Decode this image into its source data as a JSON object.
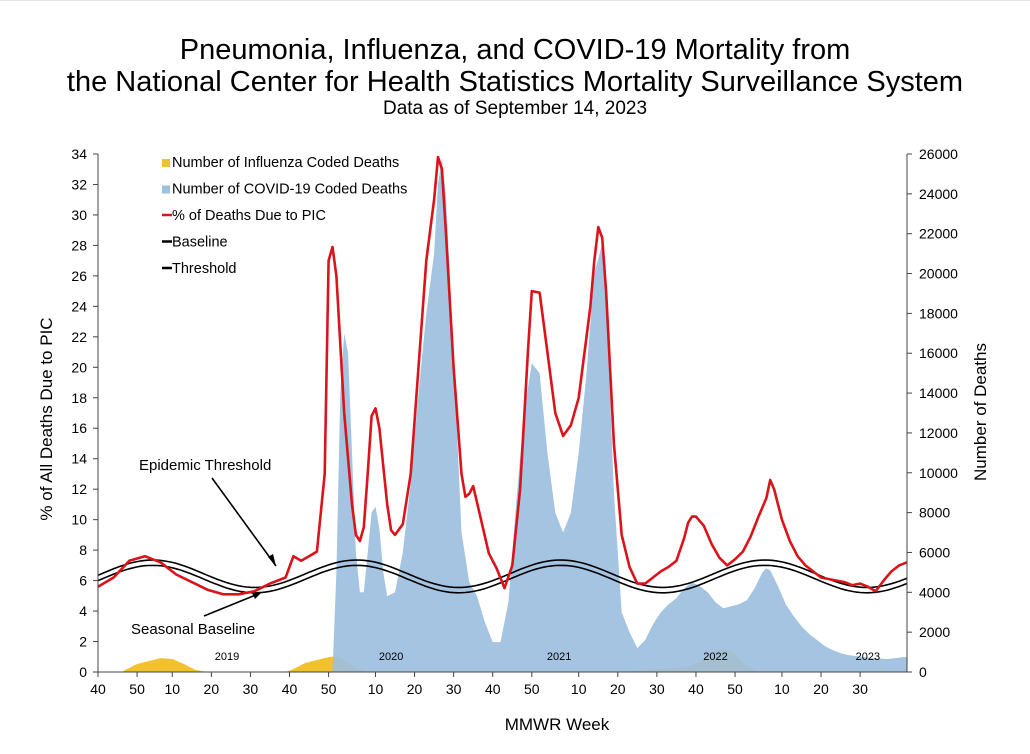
{
  "chart_data": {
    "type": "line",
    "title": "Pneumonia, Influenza, and COVID-19 Mortality from",
    "title_line2": "the National Center for Health Statistics Mortality Surveillance System",
    "subtitle": "Data as of September 14, 2023",
    "xlabel": "MMWR Week",
    "ylabel_left": "% of All Deaths Due to PIC",
    "ylabel_right": "Number of Deaths",
    "ylim_left": [
      0,
      34
    ],
    "ylim_right": [
      0,
      26000
    ],
    "yticks_left": [
      0,
      2,
      4,
      6,
      8,
      10,
      12,
      14,
      16,
      18,
      20,
      22,
      24,
      26,
      28,
      30,
      32,
      34
    ],
    "yticks_right": [
      0,
      2000,
      4000,
      6000,
      8000,
      10000,
      12000,
      14000,
      16000,
      18000,
      20000,
      22000,
      24000,
      26000
    ],
    "x_range_weeks": [
      0,
      207
    ],
    "xticks": [
      {
        "w": 0,
        "label": "40"
      },
      {
        "w": 10,
        "label": "50"
      },
      {
        "w": 19,
        "label": "10"
      },
      {
        "w": 29,
        "label": "20"
      },
      {
        "w": 39,
        "label": "30"
      },
      {
        "w": 49,
        "label": "40"
      },
      {
        "w": 59,
        "label": "50"
      },
      {
        "w": 71,
        "label": "10"
      },
      {
        "w": 81,
        "label": "20"
      },
      {
        "w": 91,
        "label": "30"
      },
      {
        "w": 101,
        "label": "40"
      },
      {
        "w": 111,
        "label": "50"
      },
      {
        "w": 123,
        "label": "10"
      },
      {
        "w": 133,
        "label": "20"
      },
      {
        "w": 143,
        "label": "30"
      },
      {
        "w": 153,
        "label": "40"
      },
      {
        "w": 163,
        "label": "50"
      },
      {
        "w": 175,
        "label": "10"
      },
      {
        "w": 185,
        "label": "20"
      },
      {
        "w": 195,
        "label": "30"
      }
    ],
    "year_labels": [
      {
        "w": 33,
        "label": "2019"
      },
      {
        "w": 75,
        "label": "2020"
      },
      {
        "w": 118,
        "label": "2021"
      },
      {
        "w": 158,
        "label": "2022"
      },
      {
        "w": 197,
        "label": "2023"
      }
    ],
    "legend": [
      {
        "label": "Number of Influenza Coded Deaths",
        "color": "#f2c12e",
        "kind": "square"
      },
      {
        "label": "Number of COVID-19 Coded Deaths",
        "color": "#9dbfe0",
        "kind": "square"
      },
      {
        "label": "% of Deaths Due to PIC",
        "color": "#d9141b",
        "kind": "line"
      },
      {
        "label": "Baseline",
        "color": "#000000",
        "kind": "line"
      },
      {
        "label": "Threshold",
        "color": "#000000",
        "kind": "line"
      }
    ],
    "annotations": [
      {
        "text": "Epidemic Threshold"
      },
      {
        "text": "Seasonal Baseline"
      }
    ],
    "baseline_model": {
      "mean_pct": 6.1,
      "amplitude_pct": 0.9,
      "peak_week": 14,
      "period_weeks": 52.2
    },
    "threshold_offset_pct": 0.35,
    "series": [
      {
        "name": "% of Deaths Due to PIC",
        "axis": "left",
        "color": "#d9141b",
        "points": [
          [
            0,
            5.6
          ],
          [
            4,
            6.2
          ],
          [
            8,
            7.3
          ],
          [
            12,
            7.6
          ],
          [
            16,
            7.2
          ],
          [
            20,
            6.4
          ],
          [
            24,
            5.9
          ],
          [
            28,
            5.4
          ],
          [
            32,
            5.1
          ],
          [
            36,
            5.1
          ],
          [
            40,
            5.3
          ],
          [
            44,
            5.8
          ],
          [
            48,
            6.2
          ],
          [
            50,
            7.6
          ],
          [
            52,
            7.3
          ],
          [
            54,
            7.6
          ],
          [
            56,
            7.9
          ],
          [
            58,
            13.0
          ],
          [
            59,
            27.0
          ],
          [
            60,
            27.9
          ],
          [
            61,
            26.0
          ],
          [
            63,
            17.0
          ],
          [
            65,
            11.0
          ],
          [
            66,
            9.0
          ],
          [
            67,
            8.6
          ],
          [
            68,
            9.5
          ],
          [
            69,
            13.0
          ],
          [
            70,
            16.8
          ],
          [
            71,
            17.3
          ],
          [
            72,
            16.0
          ],
          [
            74,
            11.0
          ],
          [
            75,
            9.3
          ],
          [
            76,
            9.0
          ],
          [
            78,
            9.7
          ],
          [
            80,
            13.0
          ],
          [
            82,
            20.0
          ],
          [
            84,
            27.0
          ],
          [
            86,
            31.0
          ],
          [
            87,
            33.8
          ],
          [
            88,
            33.0
          ],
          [
            89,
            29.0
          ],
          [
            91,
            20.0
          ],
          [
            93,
            13.0
          ],
          [
            94,
            11.5
          ],
          [
            95,
            11.7
          ],
          [
            96,
            12.2
          ],
          [
            98,
            10.0
          ],
          [
            100,
            7.8
          ],
          [
            102,
            6.8
          ],
          [
            104,
            5.5
          ],
          [
            106,
            7.0
          ],
          [
            108,
            12.0
          ],
          [
            110,
            21.0
          ],
          [
            111,
            25.0
          ],
          [
            113,
            24.9
          ],
          [
            115,
            21.0
          ],
          [
            117,
            17.0
          ],
          [
            119,
            15.5
          ],
          [
            121,
            16.2
          ],
          [
            123,
            18.0
          ],
          [
            124,
            20.0
          ],
          [
            126,
            24.0
          ],
          [
            127,
            27.0
          ],
          [
            128,
            29.2
          ],
          [
            129,
            28.5
          ],
          [
            130,
            25.0
          ],
          [
            132,
            15.0
          ],
          [
            134,
            9.0
          ],
          [
            136,
            6.9
          ],
          [
            138,
            5.8
          ],
          [
            140,
            5.8
          ],
          [
            142,
            6.2
          ],
          [
            144,
            6.6
          ],
          [
            146,
            6.9
          ],
          [
            148,
            7.3
          ],
          [
            150,
            8.8
          ],
          [
            151,
            9.8
          ],
          [
            152,
            10.2
          ],
          [
            153,
            10.2
          ],
          [
            155,
            9.6
          ],
          [
            157,
            8.4
          ],
          [
            159,
            7.5
          ],
          [
            161,
            7.0
          ],
          [
            163,
            7.4
          ],
          [
            165,
            7.9
          ],
          [
            167,
            8.9
          ],
          [
            169,
            10.2
          ],
          [
            170,
            10.8
          ],
          [
            171,
            11.4
          ],
          [
            172,
            12.6
          ],
          [
            173,
            12.0
          ],
          [
            175,
            10.0
          ],
          [
            177,
            8.6
          ],
          [
            179,
            7.6
          ],
          [
            181,
            7.0
          ],
          [
            183,
            6.6
          ],
          [
            185,
            6.2
          ],
          [
            187,
            6.1
          ],
          [
            189,
            6.0
          ],
          [
            191,
            5.9
          ],
          [
            193,
            5.7
          ],
          [
            195,
            5.8
          ],
          [
            197,
            5.6
          ],
          [
            199,
            5.3
          ],
          [
            201,
            6.0
          ],
          [
            203,
            6.6
          ],
          [
            205,
            7.0
          ],
          [
            207,
            7.2
          ]
        ]
      },
      {
        "name": "Number of COVID-19 Coded Deaths",
        "axis": "right",
        "color": "#9dbfe0",
        "points": [
          [
            0,
            0
          ],
          [
            60,
            0
          ],
          [
            61,
            5000
          ],
          [
            62,
            14000
          ],
          [
            63,
            17000
          ],
          [
            64,
            16000
          ],
          [
            65,
            11000
          ],
          [
            66,
            6000
          ],
          [
            67,
            4000
          ],
          [
            68,
            4000
          ],
          [
            69,
            6000
          ],
          [
            70,
            8000
          ],
          [
            71,
            8300
          ],
          [
            72,
            7200
          ],
          [
            73,
            5000
          ],
          [
            74,
            3800
          ],
          [
            76,
            4000
          ],
          [
            78,
            6000
          ],
          [
            80,
            9500
          ],
          [
            82,
            14000
          ],
          [
            84,
            18000
          ],
          [
            86,
            21000
          ],
          [
            87,
            24500
          ],
          [
            88,
            25800
          ],
          [
            89,
            24000
          ],
          [
            91,
            16000
          ],
          [
            93,
            7000
          ],
          [
            95,
            4500
          ],
          [
            97,
            3800
          ],
          [
            99,
            2500
          ],
          [
            101,
            1500
          ],
          [
            103,
            1500
          ],
          [
            105,
            3500
          ],
          [
            107,
            8500
          ],
          [
            109,
            13000
          ],
          [
            111,
            15500
          ],
          [
            113,
            15000
          ],
          [
            115,
            11000
          ],
          [
            117,
            8000
          ],
          [
            119,
            7000
          ],
          [
            121,
            8000
          ],
          [
            123,
            11000
          ],
          [
            125,
            15000
          ],
          [
            127,
            20000
          ],
          [
            129,
            21500
          ],
          [
            130,
            19000
          ],
          [
            132,
            9000
          ],
          [
            134,
            3000
          ],
          [
            136,
            2000
          ],
          [
            138,
            1200
          ],
          [
            140,
            1600
          ],
          [
            142,
            2400
          ],
          [
            144,
            3000
          ],
          [
            146,
            3400
          ],
          [
            148,
            3700
          ],
          [
            150,
            4200
          ],
          [
            152,
            4500
          ],
          [
            154,
            4300
          ],
          [
            156,
            4000
          ],
          [
            158,
            3500
          ],
          [
            160,
            3200
          ],
          [
            162,
            3300
          ],
          [
            164,
            3400
          ],
          [
            166,
            3600
          ],
          [
            168,
            4200
          ],
          [
            170,
            5000
          ],
          [
            171,
            5200
          ],
          [
            172,
            5100
          ],
          [
            174,
            4300
          ],
          [
            176,
            3400
          ],
          [
            178,
            2800
          ],
          [
            180,
            2300
          ],
          [
            182,
            1900
          ],
          [
            184,
            1600
          ],
          [
            186,
            1300
          ],
          [
            188,
            1100
          ],
          [
            190,
            950
          ],
          [
            192,
            850
          ],
          [
            194,
            800
          ],
          [
            196,
            750
          ],
          [
            198,
            700
          ],
          [
            200,
            680
          ],
          [
            202,
            650
          ],
          [
            204,
            700
          ],
          [
            206,
            750
          ],
          [
            207,
            760
          ]
        ]
      },
      {
        "name": "Number of Influenza Coded Deaths",
        "axis": "right",
        "color": "#f2c12e",
        "points": [
          [
            0,
            0
          ],
          [
            6,
            0
          ],
          [
            8,
            200
          ],
          [
            10,
            400
          ],
          [
            14,
            600
          ],
          [
            16,
            700
          ],
          [
            19,
            650
          ],
          [
            22,
            400
          ],
          [
            25,
            100
          ],
          [
            28,
            0
          ],
          [
            48,
            0
          ],
          [
            50,
            150
          ],
          [
            53,
            450
          ],
          [
            56,
            600
          ],
          [
            59,
            750
          ],
          [
            61,
            800
          ],
          [
            63,
            600
          ],
          [
            66,
            200
          ],
          [
            68,
            50
          ],
          [
            70,
            0
          ],
          [
            134,
            0
          ],
          [
            140,
            100
          ],
          [
            146,
            180
          ],
          [
            150,
            250
          ],
          [
            152,
            350
          ],
          [
            154,
            500
          ],
          [
            156,
            800
          ],
          [
            158,
            1100
          ],
          [
            160,
            1150
          ],
          [
            162,
            1050
          ],
          [
            164,
            700
          ],
          [
            166,
            300
          ],
          [
            168,
            100
          ],
          [
            170,
            0
          ],
          [
            207,
            0
          ]
        ]
      }
    ]
  }
}
